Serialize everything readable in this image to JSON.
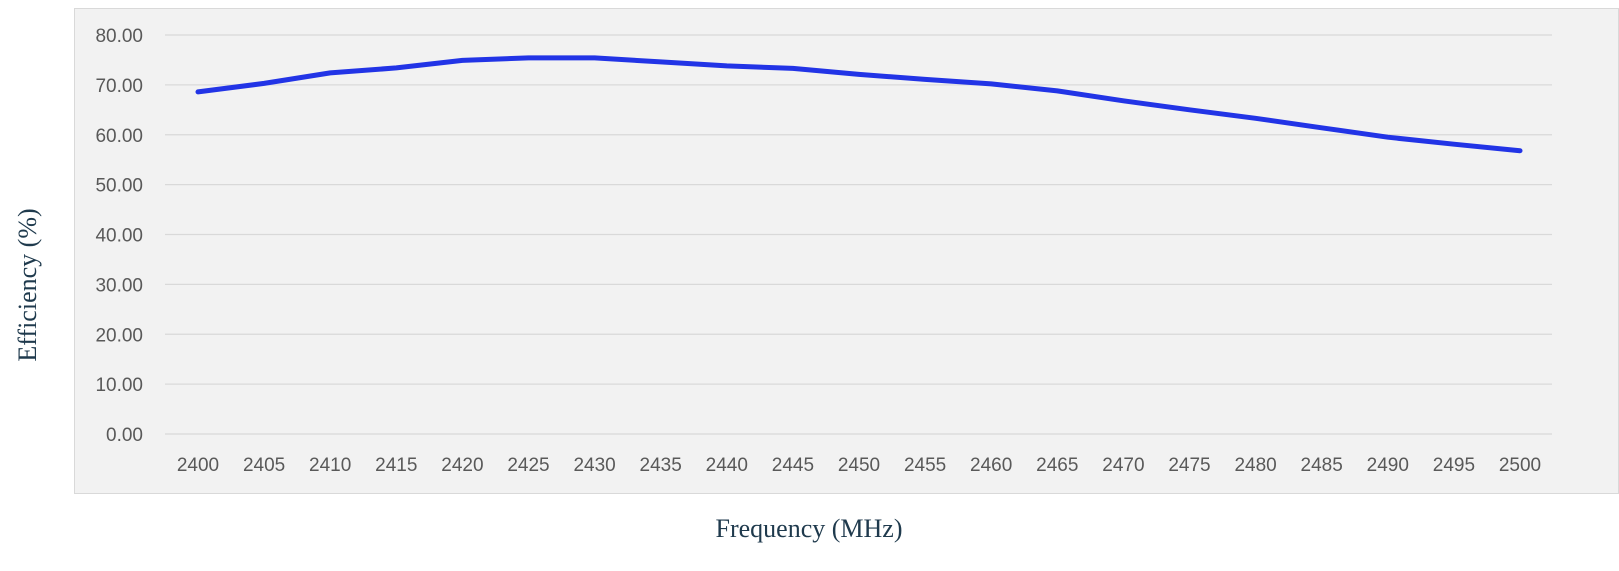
{
  "chart_data": {
    "type": "line",
    "title": "",
    "xlabel": "Frequency (MHz)",
    "ylabel": "Efficiency (%)",
    "ylim": [
      0,
      80
    ],
    "y_ticks": [
      "0.00",
      "10.00",
      "20.00",
      "30.00",
      "40.00",
      "50.00",
      "60.00",
      "70.00",
      "80.00"
    ],
    "categories": [
      "2400",
      "2405",
      "2410",
      "2415",
      "2420",
      "2425",
      "2430",
      "2435",
      "2440",
      "2445",
      "2450",
      "2455",
      "2460",
      "2465",
      "2470",
      "2475",
      "2480",
      "2485",
      "2490",
      "2495",
      "2500"
    ],
    "series": [
      {
        "values": [
          68.6,
          70.3,
          72.4,
          73.4,
          74.9,
          75.4,
          75.4,
          74.6,
          73.8,
          73.3,
          72.1,
          71.1,
          70.2,
          68.8,
          66.8,
          65.0,
          63.3,
          61.4,
          59.5,
          58.1,
          56.8
        ],
        "color": "#2234e6"
      }
    ],
    "grid": true,
    "legend": "none",
    "colors": {
      "plot_bg": "#f2f2f2",
      "gridline": "#d9d9d9",
      "frame": "#d9d9d9"
    }
  }
}
